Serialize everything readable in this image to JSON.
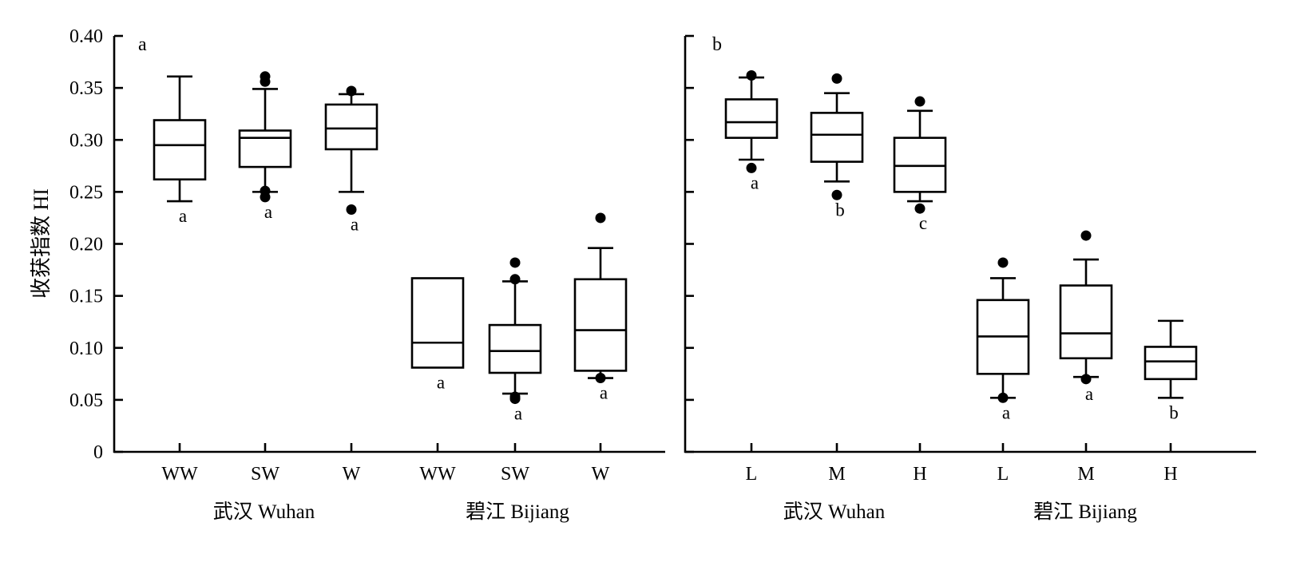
{
  "chart_data": [
    {
      "type": "box",
      "panel_label": "a",
      "ylabel": "收获指数 HI",
      "ylim": [
        0,
        0.4
      ],
      "yticks": [
        "0",
        "0.05",
        "0.10",
        "0.15",
        "0.20",
        "0.25",
        "0.30",
        "0.35",
        "0.40"
      ],
      "groups": [
        {
          "name": "武汉 Wuhan",
          "categories": [
            "WW",
            "SW",
            "W"
          ]
        },
        {
          "name": "碧江 Bijiang",
          "categories": [
            "WW",
            "SW",
            "W"
          ]
        }
      ],
      "boxes": [
        {
          "label": "WW",
          "group": 0,
          "whisker_low": 0.241,
          "q1": 0.262,
          "median": 0.295,
          "q3": 0.319,
          "whisker_high": 0.361,
          "outliers": [],
          "letter": "a"
        },
        {
          "label": "SW",
          "group": 0,
          "whisker_low": 0.25,
          "q1": 0.274,
          "median": 0.302,
          "q3": 0.309,
          "whisker_high": 0.349,
          "outliers": [
            0.361,
            0.356,
            0.251,
            0.245
          ],
          "letter": "a"
        },
        {
          "label": "W",
          "group": 0,
          "whisker_low": 0.25,
          "q1": 0.291,
          "median": 0.311,
          "q3": 0.334,
          "whisker_high": 0.344,
          "outliers": [
            0.347,
            0.233
          ],
          "letter": "a"
        },
        {
          "label": "WW",
          "group": 1,
          "whisker_low": null,
          "q1": 0.081,
          "median": 0.105,
          "q3": 0.167,
          "whisker_high": null,
          "outliers": [],
          "letter": "a"
        },
        {
          "label": "SW",
          "group": 1,
          "whisker_low": 0.056,
          "q1": 0.076,
          "median": 0.097,
          "q3": 0.122,
          "whisker_high": 0.164,
          "outliers": [
            0.182,
            0.166,
            0.053,
            0.051
          ],
          "letter": "a"
        },
        {
          "label": "W",
          "group": 1,
          "whisker_low": 0.071,
          "q1": 0.078,
          "median": 0.117,
          "q3": 0.166,
          "whisker_high": 0.196,
          "outliers": [
            0.225,
            0.071
          ],
          "letter": "a"
        }
      ]
    },
    {
      "type": "box",
      "panel_label": "b",
      "ylim": [
        0,
        0.4
      ],
      "groups": [
        {
          "name": "武汉 Wuhan",
          "categories": [
            "L",
            "M",
            "H"
          ]
        },
        {
          "name": "碧江 Bijiang",
          "categories": [
            "L",
            "M",
            "H"
          ]
        }
      ],
      "boxes": [
        {
          "label": "L",
          "group": 0,
          "whisker_low": 0.281,
          "q1": 0.302,
          "median": 0.317,
          "q3": 0.339,
          "whisker_high": 0.36,
          "outliers": [
            0.362,
            0.273
          ],
          "letter": "a"
        },
        {
          "label": "M",
          "group": 0,
          "whisker_low": 0.26,
          "q1": 0.279,
          "median": 0.305,
          "q3": 0.326,
          "whisker_high": 0.345,
          "outliers": [
            0.359,
            0.247
          ],
          "letter": "b"
        },
        {
          "label": "H",
          "group": 0,
          "whisker_low": 0.241,
          "q1": 0.25,
          "median": 0.275,
          "q3": 0.302,
          "whisker_high": 0.328,
          "outliers": [
            0.337,
            0.234
          ],
          "letter": "c"
        },
        {
          "label": "L",
          "group": 1,
          "whisker_low": 0.052,
          "q1": 0.075,
          "median": 0.111,
          "q3": 0.146,
          "whisker_high": 0.167,
          "outliers": [
            0.182,
            0.052
          ],
          "letter": "a"
        },
        {
          "label": "M",
          "group": 1,
          "whisker_low": 0.072,
          "q1": 0.09,
          "median": 0.114,
          "q3": 0.16,
          "whisker_high": 0.185,
          "outliers": [
            0.208,
            0.07
          ],
          "letter": "a"
        },
        {
          "label": "H",
          "group": 1,
          "whisker_low": 0.052,
          "q1": 0.07,
          "median": 0.087,
          "q3": 0.101,
          "whisker_high": 0.126,
          "outliers": [],
          "letter": "b"
        }
      ]
    }
  ]
}
